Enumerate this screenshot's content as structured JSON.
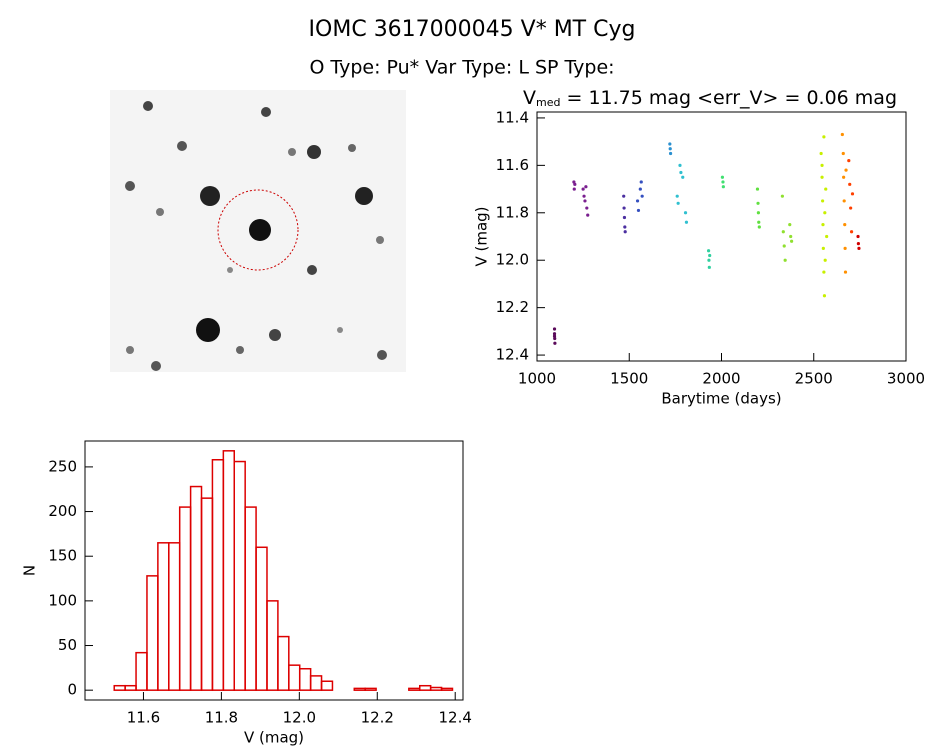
{
  "header": {
    "title": "IOMC 3617000045    V* MT Cyg",
    "subtitle": "O Type: Pu*  Var Type: L  SP Type:"
  },
  "chart_data": [
    {
      "type": "scatter",
      "title": "V",
      "title_subscript": "med",
      "title_rest": " = 11.75 mag <err_V> = 0.06 mag",
      "xlabel": "Barytime (days)",
      "ylabel": "V (mag)",
      "xlim": [
        1000,
        3000
      ],
      "xticks": [
        1000,
        1500,
        2000,
        2500,
        3000
      ],
      "ylim": [
        11.375,
        12.425
      ],
      "y_inverted": true,
      "yticks": [
        11.4,
        11.6,
        11.8,
        {
          "value": 12,
          "label": "12.0"
        },
        12.2,
        12.4
      ],
      "series": [
        {
          "color": "#5a0a5a",
          "x": [
            1095,
            1095,
            1096,
            1097,
            1095
          ],
          "values": [
            12.29,
            12.31,
            12.33,
            12.35,
            12.32
          ]
        },
        {
          "color": "#7a1f8f",
          "x": [
            1200,
            1202,
            1205,
            1250,
            1255,
            1260,
            1265,
            1270,
            1275
          ],
          "values": [
            11.67,
            11.7,
            11.68,
            11.7,
            11.73,
            11.75,
            11.69,
            11.78,
            11.81
          ]
        },
        {
          "color": "#4b2fa0",
          "x": [
            1470,
            1472,
            1474,
            1476,
            1478
          ],
          "values": [
            11.73,
            11.78,
            11.82,
            11.86,
            11.88
          ]
        },
        {
          "color": "#3550c0",
          "x": [
            1545,
            1550,
            1560,
            1565,
            1570
          ],
          "values": [
            11.75,
            11.79,
            11.7,
            11.67,
            11.73
          ]
        },
        {
          "color": "#2a90d0",
          "x": [
            1720,
            1722,
            1724
          ],
          "values": [
            11.51,
            11.53,
            11.55
          ]
        },
        {
          "color": "#30c0d0",
          "x": [
            1760,
            1765,
            1775,
            1780,
            1790,
            1805,
            1810
          ],
          "values": [
            11.73,
            11.76,
            11.6,
            11.63,
            11.65,
            11.8,
            11.84
          ]
        },
        {
          "color": "#30d0a0",
          "x": [
            1930,
            1932,
            1934,
            1936
          ],
          "values": [
            11.96,
            12.0,
            12.03,
            11.98
          ]
        },
        {
          "color": "#40e070",
          "x": [
            2005,
            2008,
            2010
          ],
          "values": [
            11.65,
            11.67,
            11.69
          ]
        },
        {
          "color": "#60e040",
          "x": [
            2195,
            2198,
            2200,
            2202,
            2205
          ],
          "values": [
            11.7,
            11.76,
            11.8,
            11.84,
            11.86
          ]
        },
        {
          "color": "#90e030",
          "x": [
            2330,
            2335,
            2340,
            2345,
            2370,
            2375,
            2380
          ],
          "values": [
            11.73,
            11.88,
            11.94,
            12.0,
            11.85,
            11.9,
            11.92
          ]
        },
        {
          "color": "#c8f000",
          "x": [
            2540,
            2545,
            2548,
            2550,
            2552,
            2555,
            2558,
            2560,
            2565,
            2570,
            2555,
            2545,
            2562
          ],
          "values": [
            11.55,
            11.65,
            11.75,
            11.85,
            11.95,
            12.05,
            12.15,
            11.8,
            11.7,
            11.9,
            11.48,
            11.6,
            12.0
          ]
        },
        {
          "color": "#ff9000",
          "x": [
            2655,
            2660,
            2662,
            2665,
            2668,
            2670,
            2672,
            2675
          ],
          "values": [
            11.47,
            11.55,
            11.65,
            11.75,
            11.85,
            11.95,
            12.05,
            11.62
          ]
        },
        {
          "color": "#ff4000",
          "x": [
            2690,
            2695,
            2700,
            2705,
            2710
          ],
          "values": [
            11.58,
            11.68,
            11.78,
            11.88,
            11.72
          ]
        },
        {
          "color": "#d00000",
          "x": [
            2740,
            2742,
            2745
          ],
          "values": [
            11.9,
            11.93,
            11.95
          ]
        }
      ]
    },
    {
      "type": "histogram",
      "xlabel": "V (mag)",
      "ylabel": "N",
      "color": "#dd0000",
      "bins": [
        11.525,
        11.553,
        11.581,
        11.609,
        11.637,
        11.665,
        11.693,
        11.721,
        11.749,
        11.777,
        11.805,
        11.833,
        11.861,
        11.889,
        11.917,
        11.945,
        11.973,
        12.001,
        12.029,
        12.057,
        12.085,
        12.113,
        12.141,
        12.169,
        12.197,
        12.225,
        12.253,
        12.281,
        12.309,
        12.337,
        12.365,
        12.393,
        12.421
      ],
      "values": [
        5,
        5,
        42,
        128,
        165,
        165,
        205,
        228,
        215,
        258,
        268,
        256,
        205,
        160,
        100,
        60,
        28,
        24,
        16,
        10,
        0,
        0,
        2,
        2,
        0,
        0,
        0,
        2,
        5,
        3,
        2,
        0
      ],
      "xlim": [
        11.45,
        12.42
      ],
      "xticks": [
        11.6,
        11.8,
        {
          "value": 12,
          "label": "12.0"
        },
        12.2,
        12.4
      ],
      "ylim": [
        -11,
        279
      ],
      "yticks": [
        0,
        50,
        100,
        150,
        200,
        250
      ]
    }
  ]
}
